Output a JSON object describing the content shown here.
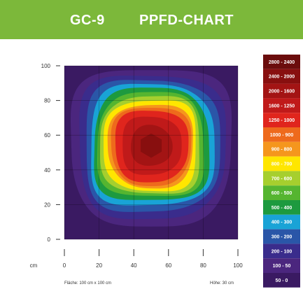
{
  "header": {
    "model": "GC-9",
    "title": "PPFD-CHART",
    "background": "#7cb83a"
  },
  "chart_data": {
    "type": "heatmap",
    "x_unit": "cm",
    "x_ticks": [
      0,
      20,
      40,
      60,
      80,
      100
    ],
    "y_ticks": [
      0,
      20,
      40,
      60,
      80,
      100
    ],
    "xlim": [
      0,
      100
    ],
    "ylim": [
      0,
      100
    ],
    "grid": true,
    "legend_position": "right",
    "legend": [
      {
        "label": "2800 - 2400",
        "color": "#6b0d0d"
      },
      {
        "label": "2400 - 2000",
        "color": "#880f0f"
      },
      {
        "label": "2000 - 1600",
        "color": "#a31414"
      },
      {
        "label": "1600 - 1250",
        "color": "#c01a1a"
      },
      {
        "label": "1250 - 1000",
        "color": "#e0251d"
      },
      {
        "label": "1000 - 900",
        "color": "#ee6a1c"
      },
      {
        "label": "900 - 800",
        "color": "#f5961d"
      },
      {
        "label": "800 - 700",
        "color": "#ffe600"
      },
      {
        "label": "700 - 600",
        "color": "#a6cf2e"
      },
      {
        "label": "600 - 500",
        "color": "#55b530"
      },
      {
        "label": "500 - 400",
        "color": "#1d9a3f"
      },
      {
        "label": "400 - 300",
        "color": "#19a3d6"
      },
      {
        "label": "300 - 200",
        "color": "#2a56a8"
      },
      {
        "label": "200 - 100",
        "color": "#3a2c8c"
      },
      {
        "label": "100 - 50",
        "color": "#4b267e"
      },
      {
        "label": "50 - 0",
        "color": "#3a1a62"
      }
    ],
    "contours": [
      {
        "band": "100 - 50",
        "color": "#4b267e",
        "half_width": 46.0
      },
      {
        "band": "200 - 100",
        "color": "#3a2c8c",
        "half_width": 42.0
      },
      {
        "band": "300 - 200",
        "color": "#2a56a8",
        "half_width": 38.5
      },
      {
        "band": "400 - 300",
        "color": "#19a3d6",
        "half_width": 35.5
      },
      {
        "band": "500 - 400",
        "color": "#1d9a3f",
        "half_width": 33.0
      },
      {
        "band": "600 - 500",
        "color": "#55b530",
        "half_width": 30.5
      },
      {
        "band": "700 - 600",
        "color": "#a6cf2e",
        "half_width": 28.5
      },
      {
        "band": "800 - 700",
        "color": "#ffe600",
        "half_width": 26.5
      },
      {
        "band": "900 - 800",
        "color": "#f5961d",
        "half_width": 24.5
      },
      {
        "band": "1000 - 900",
        "color": "#ee6a1c",
        "half_width": 23.0
      },
      {
        "band": "1250 - 1000",
        "color": "#e0251d",
        "half_width": 21.0
      },
      {
        "band": "1600 - 1250",
        "color": "#c01a1a",
        "half_width": 17.0
      },
      {
        "band": "2000 - 1600",
        "color": "#a31414",
        "half_width": 12.0
      }
    ],
    "center": [
      50,
      54
    ]
  },
  "footer": {
    "area": "Fläche: 100 cm x 100 cm",
    "height": "Höhe: 30 cm"
  }
}
